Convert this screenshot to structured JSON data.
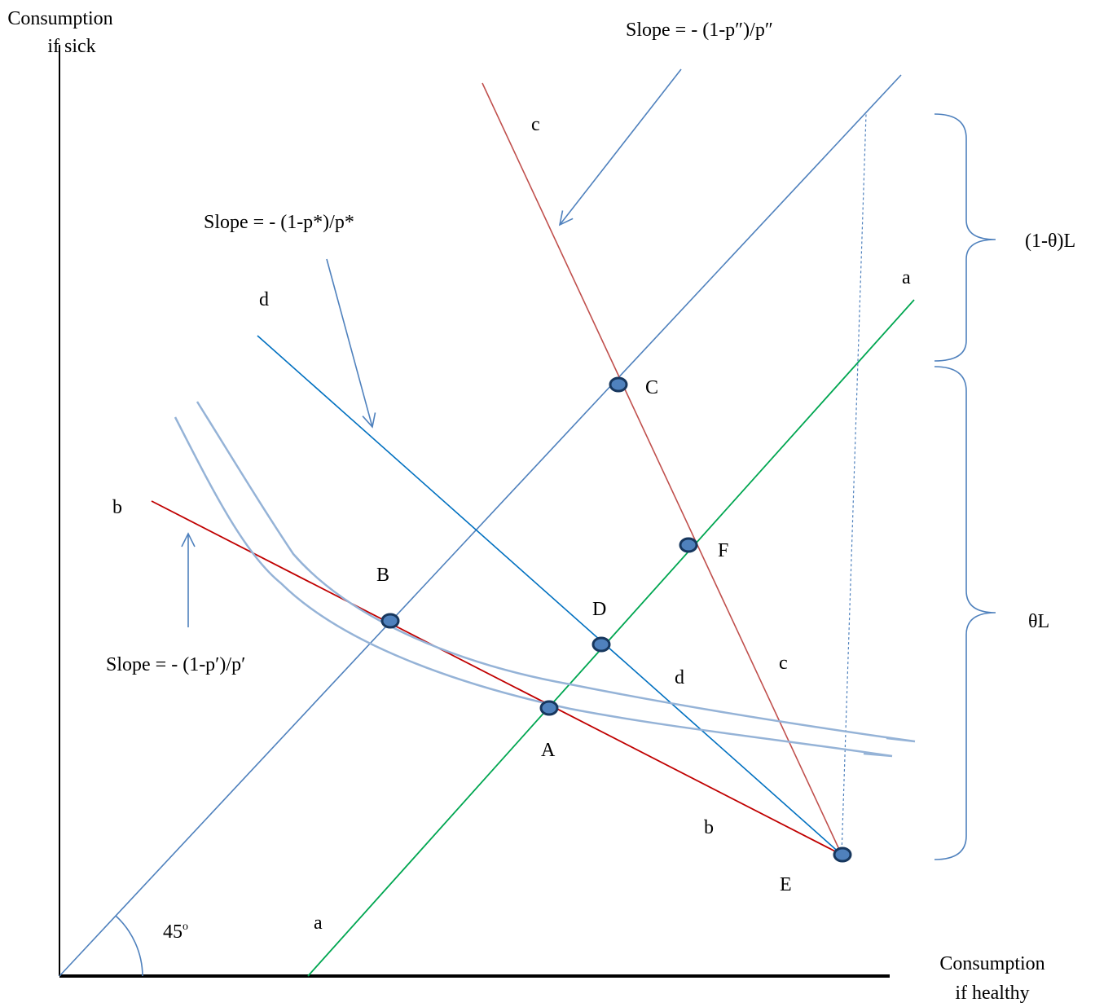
{
  "axes": {
    "y_label_line1": "Consumption",
    "y_label_line2": "if sick",
    "x_label_line1": "Consumption",
    "x_label_line2": "if healthy",
    "angle_label": "45",
    "angle_sup": "o"
  },
  "points": {
    "A": "A",
    "B": "B",
    "C": "C",
    "D": "D",
    "E": "E",
    "F": "F"
  },
  "line_labels": {
    "a_top": "a",
    "a_bottom": "a",
    "b_left": "b",
    "b_bottom": "b",
    "c_top": "c",
    "c_bottom": "c",
    "d_top": "d",
    "d_bottom": "d"
  },
  "slopes": {
    "p_double": "Slope = - (1-p″)/p″",
    "p_star": "Slope = - (1-p*)/p*",
    "p_prime": "Slope = - (1-p′)/p′"
  },
  "braces": {
    "upper": "(1-θ)L",
    "lower": "θL"
  },
  "colors": {
    "axis": "#000000",
    "certainty_line": "#4f81bd",
    "line_a": "#00a651",
    "line_b": "#c00000",
    "line_c": "#c0504d",
    "line_d": "#0070c0",
    "indifference": "#95b3d7",
    "point_fill": "#4f81bd",
    "point_stroke": "#17375e"
  }
}
